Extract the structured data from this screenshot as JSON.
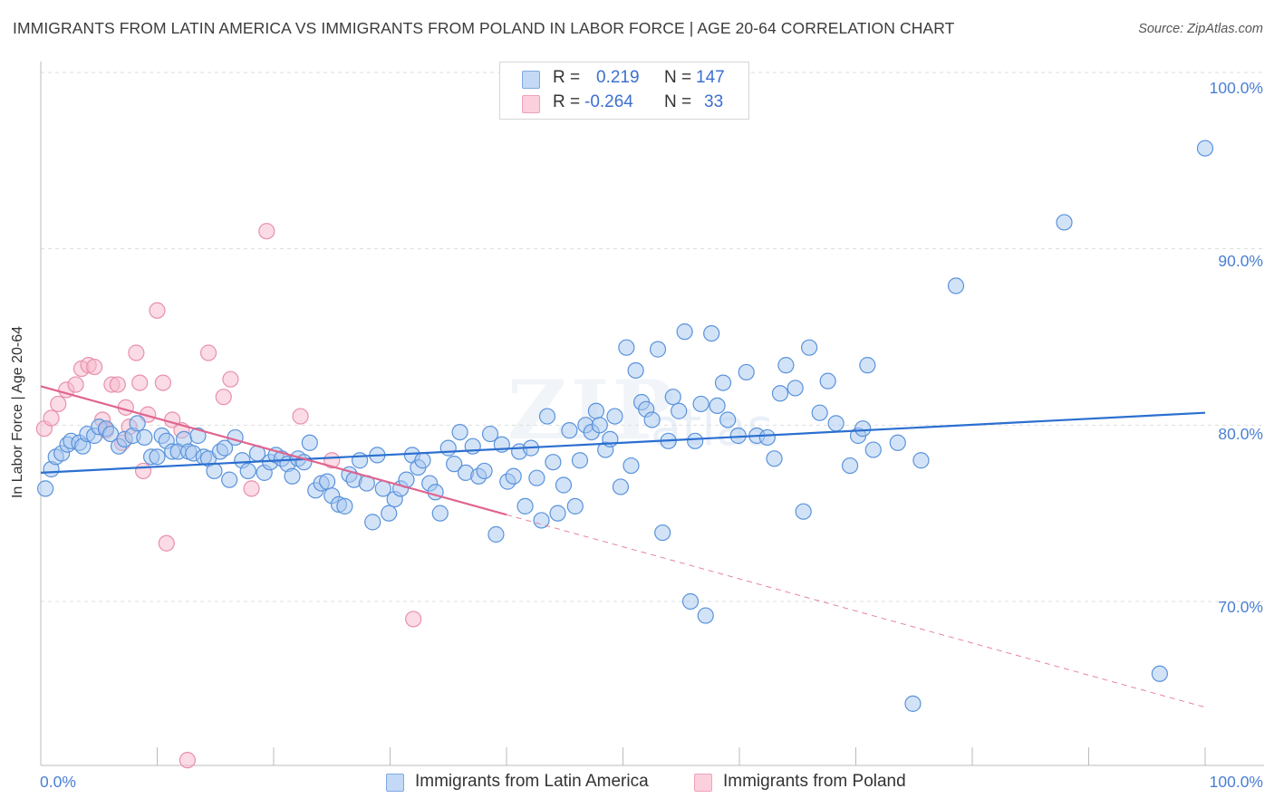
{
  "title": "IMMIGRANTS FROM LATIN AMERICA VS IMMIGRANTS FROM POLAND IN LABOR FORCE | AGE 20-64 CORRELATION CHART",
  "source": "Source: ZipAtlas.com",
  "watermark": "ZIP",
  "watermark_sub": "atlas",
  "legend": {
    "rows": [
      {
        "r_label": "R =",
        "r_value": "0.219",
        "n_label": "N =",
        "n_value": "147",
        "color": "#a8c8f0"
      },
      {
        "r_label": "R =",
        "r_value": "-0.264",
        "n_label": "N =",
        "n_value": "33",
        "color": "#f8b8cc"
      }
    ]
  },
  "colors": {
    "blue_fill": "#a8c8f0",
    "blue_stroke": "#5a93dc",
    "blue_line": "#2b6fd0",
    "pink_fill": "#f8b8cc",
    "pink_stroke": "#e890ac",
    "pink_line": "#e0648e",
    "tick_text": "#4a7fd4",
    "grid": "#dddddd"
  },
  "chart_data": {
    "type": "scatter",
    "title": "IMMIGRANTS FROM LATIN AMERICA VS IMMIGRANTS FROM POLAND IN LABOR FORCE | AGE 20-64 CORRELATION CHART",
    "xlabel": "",
    "ylabel": "In Labor Force | Age 20-64",
    "xlim": [
      0,
      100
    ],
    "ylim": [
      60.7,
      100
    ],
    "x_tick_labels": [
      "0.0%",
      "100.0%"
    ],
    "y_ticks": [
      70,
      80,
      90,
      100
    ],
    "y_tick_labels": [
      "70.0%",
      "80.0%",
      "90.0%",
      "100.0%"
    ],
    "legend_position": "bottom-center",
    "series": [
      {
        "name": "Immigrants from Latin America",
        "color": "#a8c8f0",
        "trend": {
          "x": [
            0,
            100
          ],
          "y": [
            77.3,
            80.7
          ],
          "dashed_extension": false
        },
        "points": [
          [
            0.4,
            76.4
          ],
          [
            0.9,
            77.5
          ],
          [
            1.3,
            78.2
          ],
          [
            1.8,
            78.4
          ],
          [
            2.3,
            78.9
          ],
          [
            2.6,
            79.1
          ],
          [
            3.3,
            79.0
          ],
          [
            3.6,
            78.8
          ],
          [
            4.0,
            79.5
          ],
          [
            4.6,
            79.4
          ],
          [
            5.0,
            79.9
          ],
          [
            5.6,
            79.8
          ],
          [
            6.0,
            79.5
          ],
          [
            6.7,
            78.8
          ],
          [
            7.2,
            79.2
          ],
          [
            7.9,
            79.4
          ],
          [
            8.3,
            80.1
          ],
          [
            8.9,
            79.3
          ],
          [
            9.5,
            78.2
          ],
          [
            10.0,
            78.2
          ],
          [
            10.4,
            79.4
          ],
          [
            10.8,
            79.1
          ],
          [
            11.3,
            78.5
          ],
          [
            11.8,
            78.5
          ],
          [
            12.3,
            79.2
          ],
          [
            12.7,
            78.5
          ],
          [
            13.1,
            78.4
          ],
          [
            13.5,
            79.4
          ],
          [
            14.0,
            78.2
          ],
          [
            14.4,
            78.1
          ],
          [
            14.9,
            77.4
          ],
          [
            15.4,
            78.5
          ],
          [
            15.8,
            78.7
          ],
          [
            16.2,
            76.9
          ],
          [
            16.7,
            79.3
          ],
          [
            17.3,
            78.0
          ],
          [
            17.8,
            77.4
          ],
          [
            18.6,
            78.4
          ],
          [
            19.2,
            77.3
          ],
          [
            19.7,
            77.9
          ],
          [
            20.2,
            78.3
          ],
          [
            20.7,
            78.1
          ],
          [
            21.2,
            77.8
          ],
          [
            21.6,
            77.1
          ],
          [
            22.1,
            78.1
          ],
          [
            22.6,
            77.9
          ],
          [
            23.1,
            79.0
          ],
          [
            23.6,
            76.3
          ],
          [
            24.1,
            76.7
          ],
          [
            24.6,
            76.8
          ],
          [
            25.0,
            76.0
          ],
          [
            25.6,
            75.5
          ],
          [
            26.1,
            75.4
          ],
          [
            26.5,
            77.2
          ],
          [
            26.9,
            76.9
          ],
          [
            27.4,
            78.0
          ],
          [
            28.0,
            76.7
          ],
          [
            28.5,
            74.5
          ],
          [
            28.9,
            78.3
          ],
          [
            29.4,
            76.4
          ],
          [
            29.9,
            75.0
          ],
          [
            30.4,
            75.8
          ],
          [
            30.9,
            76.4
          ],
          [
            31.4,
            76.9
          ],
          [
            31.9,
            78.3
          ],
          [
            32.4,
            77.6
          ],
          [
            32.8,
            78.0
          ],
          [
            33.4,
            76.7
          ],
          [
            33.9,
            76.2
          ],
          [
            34.3,
            75.0
          ],
          [
            35.0,
            78.7
          ],
          [
            35.5,
            77.8
          ],
          [
            36.0,
            79.6
          ],
          [
            36.5,
            77.3
          ],
          [
            37.1,
            78.8
          ],
          [
            37.6,
            77.1
          ],
          [
            38.1,
            77.4
          ],
          [
            38.6,
            79.5
          ],
          [
            39.1,
            73.8
          ],
          [
            39.6,
            78.9
          ],
          [
            40.1,
            76.8
          ],
          [
            40.6,
            77.1
          ],
          [
            41.1,
            78.5
          ],
          [
            41.6,
            75.4
          ],
          [
            42.1,
            78.7
          ],
          [
            42.6,
            77.0
          ],
          [
            43.0,
            74.6
          ],
          [
            43.5,
            80.5
          ],
          [
            44.0,
            77.9
          ],
          [
            44.4,
            75.0
          ],
          [
            44.9,
            76.6
          ],
          [
            45.4,
            79.7
          ],
          [
            45.9,
            75.4
          ],
          [
            46.3,
            78.0
          ],
          [
            46.8,
            80.0
          ],
          [
            47.3,
            79.6
          ],
          [
            47.7,
            80.8
          ],
          [
            48.0,
            80.0
          ],
          [
            48.5,
            78.6
          ],
          [
            48.9,
            79.2
          ],
          [
            49.3,
            80.5
          ],
          [
            49.8,
            76.5
          ],
          [
            50.3,
            84.4
          ],
          [
            50.7,
            77.7
          ],
          [
            51.1,
            83.1
          ],
          [
            51.6,
            81.3
          ],
          [
            52.0,
            80.9
          ],
          [
            52.5,
            80.3
          ],
          [
            53.0,
            84.3
          ],
          [
            53.4,
            73.9
          ],
          [
            53.9,
            79.1
          ],
          [
            54.3,
            81.6
          ],
          [
            54.8,
            80.8
          ],
          [
            55.3,
            85.3
          ],
          [
            55.8,
            70.0
          ],
          [
            56.2,
            79.1
          ],
          [
            56.7,
            81.2
          ],
          [
            57.1,
            69.2
          ],
          [
            57.6,
            85.2
          ],
          [
            58.1,
            81.1
          ],
          [
            58.6,
            82.4
          ],
          [
            59.0,
            80.3
          ],
          [
            59.9,
            79.4
          ],
          [
            60.6,
            83.0
          ],
          [
            61.5,
            79.4
          ],
          [
            62.4,
            79.3
          ],
          [
            63.0,
            78.1
          ],
          [
            63.5,
            81.8
          ],
          [
            64.0,
            83.4
          ],
          [
            64.8,
            82.1
          ],
          [
            65.5,
            75.1
          ],
          [
            66.0,
            84.4
          ],
          [
            66.9,
            80.7
          ],
          [
            67.6,
            82.5
          ],
          [
            68.3,
            80.1
          ],
          [
            69.5,
            77.7
          ],
          [
            70.2,
            79.4
          ],
          [
            70.6,
            79.8
          ],
          [
            71.0,
            83.4
          ],
          [
            71.5,
            78.6
          ],
          [
            73.6,
            79.0
          ],
          [
            74.9,
            64.2
          ],
          [
            75.6,
            78.0
          ],
          [
            78.6,
            87.9
          ],
          [
            87.9,
            91.5
          ],
          [
            96.1,
            65.9
          ],
          [
            100.0,
            95.7
          ]
        ]
      },
      {
        "name": "Immigrants from Poland",
        "color": "#f8b8cc",
        "trend": {
          "x": [
            0,
            100
          ],
          "y": [
            82.2,
            64.0
          ],
          "solid_until_x": 40.0
        },
        "points": [
          [
            0.3,
            79.8
          ],
          [
            0.9,
            80.4
          ],
          [
            1.5,
            81.2
          ],
          [
            2.2,
            82.0
          ],
          [
            3.0,
            82.3
          ],
          [
            3.5,
            83.2
          ],
          [
            4.1,
            83.4
          ],
          [
            4.6,
            83.3
          ],
          [
            5.3,
            80.3
          ],
          [
            5.6,
            79.7
          ],
          [
            6.1,
            82.3
          ],
          [
            6.6,
            82.3
          ],
          [
            7.0,
            79.0
          ],
          [
            7.3,
            81.0
          ],
          [
            7.6,
            79.9
          ],
          [
            8.2,
            84.1
          ],
          [
            8.5,
            82.4
          ],
          [
            8.8,
            77.4
          ],
          [
            9.2,
            80.6
          ],
          [
            10.0,
            86.5
          ],
          [
            10.5,
            82.4
          ],
          [
            10.8,
            73.3
          ],
          [
            11.3,
            80.3
          ],
          [
            12.1,
            79.7
          ],
          [
            12.6,
            61.0
          ],
          [
            14.4,
            84.1
          ],
          [
            15.7,
            81.6
          ],
          [
            16.3,
            82.6
          ],
          [
            18.1,
            76.4
          ],
          [
            19.4,
            91.0
          ],
          [
            22.3,
            80.5
          ],
          [
            25.0,
            78.0
          ],
          [
            32.0,
            69.0
          ]
        ]
      }
    ]
  },
  "bottom_legend": [
    {
      "label": "Immigrants from Latin America",
      "color": "#a8c8f0"
    },
    {
      "label": "Immigrants from Poland",
      "color": "#f8b8cc"
    }
  ]
}
